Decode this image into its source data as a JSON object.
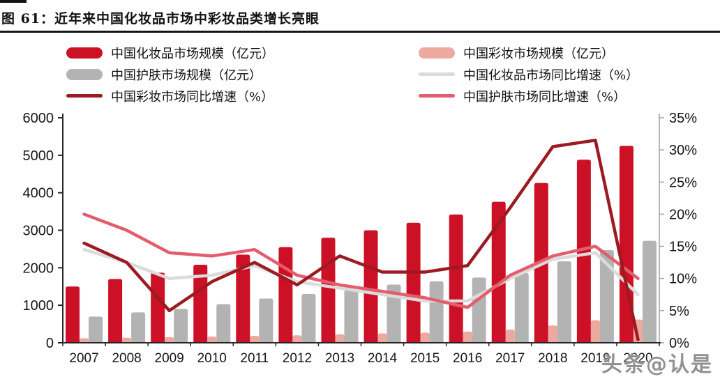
{
  "title": "图 61：近年来中国化妆品市场中彩妆品类增长亮眼",
  "watermark": "头条@认是",
  "colors": {
    "bar_cosmetics": "#CC1126",
    "bar_color_makeup": "#EDA89F",
    "bar_skincare": "#B3B3B3",
    "line_cosmetics_growth": "#DBDBDB",
    "line_color_makeup_growth": "#9C1B20",
    "line_skincare_growth": "#E35D6D",
    "axis_dark": "#262626",
    "axis_right": "#A6A6A6",
    "title_text": "#111111",
    "watermark_gray": "#828282"
  },
  "legend": {
    "items": [
      {
        "label": "中国化妆品市场规模（亿元）",
        "type": "bar",
        "color": "#CC1126"
      },
      {
        "label": "中国彩妆市场规模（亿元）",
        "type": "bar",
        "color": "#EDA89F"
      },
      {
        "label": "中国护肤市场规模（亿元）",
        "type": "bar",
        "color": "#B3B3B3"
      },
      {
        "label": "中国化妆品市场同比增速（%）",
        "type": "line",
        "color": "#DBDBDB"
      },
      {
        "label": "中国彩妆市场同比增速（%）",
        "type": "line",
        "color": "#9C1B20"
      },
      {
        "label": "中国护肤市场同比增速（%）",
        "type": "line",
        "color": "#E35D6D"
      }
    ]
  },
  "chart_data": {
    "type": "bar+line",
    "categories": [
      "2007",
      "2008",
      "2009",
      "2010",
      "2011",
      "2012",
      "2013",
      "2014",
      "2015",
      "2016",
      "2017",
      "2018",
      "2019",
      "2020"
    ],
    "left_axis": {
      "min": 0,
      "max": 6000,
      "step": 1000,
      "tick_labels": [
        "0",
        "1000",
        "2000",
        "3000",
        "4000",
        "5000",
        "6000"
      ]
    },
    "right_axis": {
      "min": 0,
      "max": 35,
      "step": 5,
      "tick_labels": [
        "0%",
        "5%",
        "10%",
        "15%",
        "20%",
        "25%",
        "30%",
        "35%"
      ]
    },
    "grid": false,
    "legend_position": "top",
    "series": [
      {
        "key": "cosmetics_size",
        "name": "中国化妆品市场规模（亿元）",
        "kind": "bar",
        "axis": "left",
        "color": "#CC1126",
        "values": [
          1500,
          1700,
          1870,
          2080,
          2350,
          2550,
          2800,
          3000,
          3200,
          3420,
          3760,
          4260,
          4880,
          5250
        ]
      },
      {
        "key": "color_makeup_size",
        "name": "中国彩妆市场规模（亿元）",
        "kind": "bar",
        "axis": "left",
        "color": "#EDA89F",
        "values": [
          120,
          135,
          150,
          165,
          185,
          200,
          225,
          250,
          270,
          300,
          350,
          460,
          600,
          620
        ]
      },
      {
        "key": "skincare_size",
        "name": "中国护肤市场规模（亿元）",
        "kind": "bar",
        "axis": "left",
        "color": "#B3B3B3",
        "values": [
          700,
          810,
          900,
          1030,
          1180,
          1300,
          1410,
          1550,
          1640,
          1740,
          1860,
          2170,
          2470,
          2720
        ]
      },
      {
        "key": "cosmetics_growth",
        "name": "中国化妆品市场同比增速（%）",
        "kind": "line",
        "axis": "right",
        "color": "#DBDBDB",
        "values": [
          14.5,
          12.5,
          10.0,
          10.5,
          12.0,
          9.5,
          8.5,
          7.5,
          6.5,
          6.5,
          10.0,
          13.0,
          14.0,
          7.5
        ]
      },
      {
        "key": "skincare_growth",
        "name": "中国护肤市场同比增速（%）",
        "kind": "line",
        "axis": "right",
        "color": "#E35D6D",
        "values": [
          20.0,
          17.5,
          14.0,
          13.5,
          14.5,
          10.5,
          9.0,
          8.0,
          7.0,
          5.5,
          10.5,
          13.5,
          15.0,
          10.0
        ]
      },
      {
        "key": "color_makeup_growth",
        "name": "中国彩妆市场同比增速（%）",
        "kind": "line",
        "axis": "right",
        "color": "#9C1B20",
        "values": [
          15.5,
          12.5,
          5.0,
          9.5,
          12.5,
          9.0,
          13.5,
          11.0,
          11.0,
          12.0,
          21.0,
          30.5,
          31.5,
          0.5
        ]
      }
    ]
  }
}
